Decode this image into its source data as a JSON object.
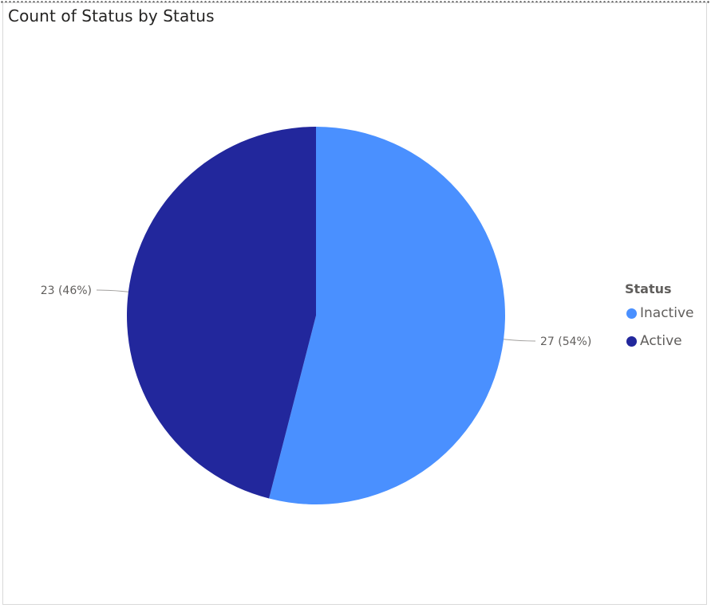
{
  "chart_data": {
    "type": "pie",
    "title": "Count of Status by Status",
    "legend_title": "Status",
    "legend_position": "right",
    "slices": [
      {
        "label": "Inactive",
        "value": 27,
        "percent": "54%",
        "data_label": "27 (54%)",
        "color": "#4a90ff"
      },
      {
        "label": "Active",
        "value": 23,
        "percent": "46%",
        "data_label": "23 (46%)",
        "color": "#22279c"
      }
    ]
  }
}
